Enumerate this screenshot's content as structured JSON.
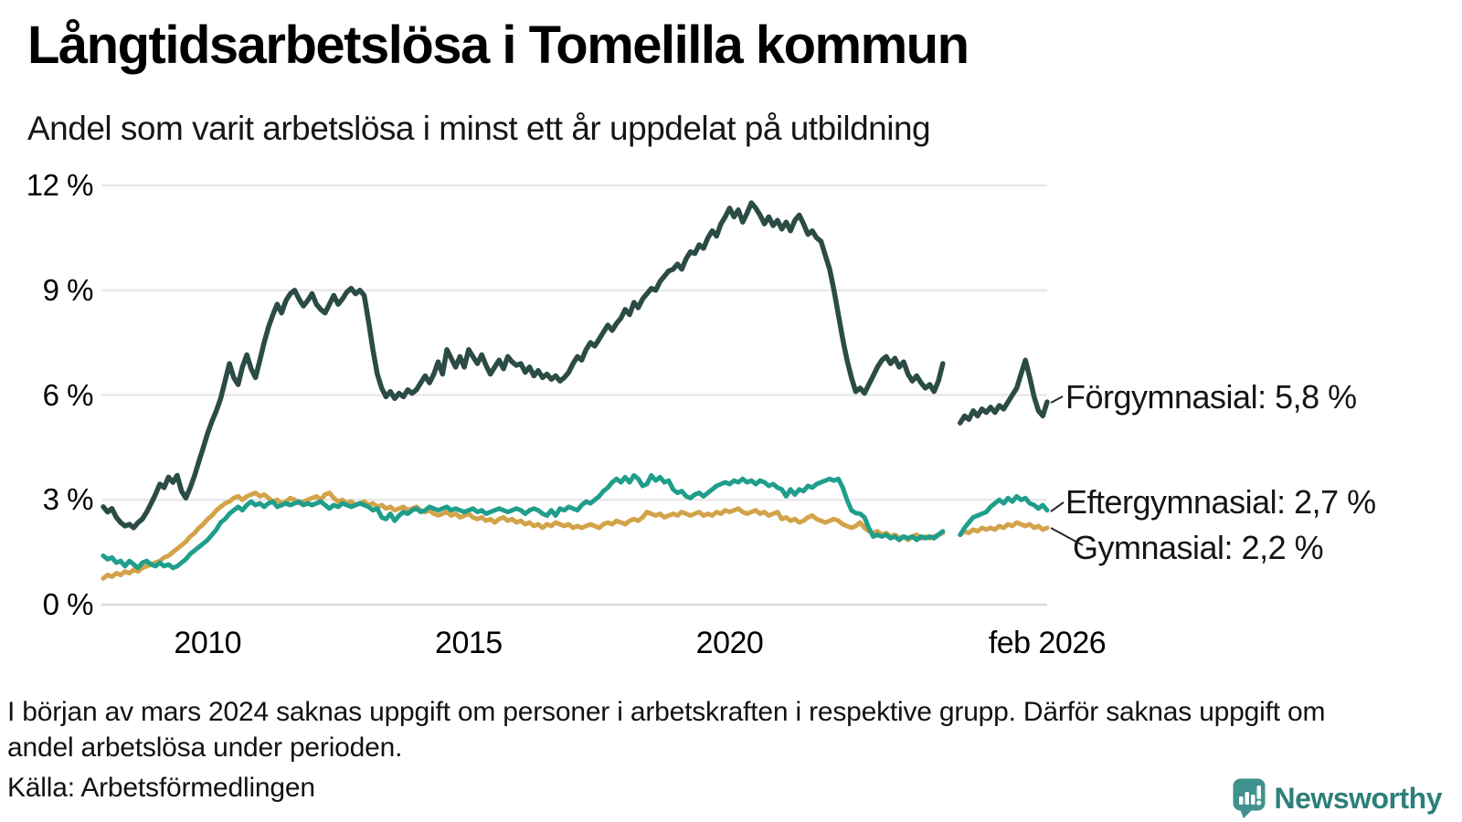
{
  "header": {
    "title": "Långtidsarbetslösa i Tomelilla kommun",
    "subtitle": "Andel som varit arbetslösa i minst ett år uppdelat på utbildning"
  },
  "chart_data": {
    "type": "line",
    "title": "Långtidsarbetslösa i Tomelilla kommun",
    "subtitle": "Andel som varit arbetslösa i minst ett år uppdelat på utbildning",
    "unit": "percent",
    "frequency": "monthly",
    "x_start": "2008-01",
    "x_end": "2026-02",
    "missing_period": "2024-03 to 2024-05",
    "ylim": [
      0,
      12.6
    ],
    "grid": true,
    "yticks": [
      {
        "label": "0 %",
        "value": 0
      },
      {
        "label": "3 %",
        "value": 3
      },
      {
        "label": "6 %",
        "value": 6
      },
      {
        "label": "9 %",
        "value": 9
      },
      {
        "label": "12 %",
        "value": 12
      }
    ],
    "xticks": [
      {
        "label": "2010",
        "date": "2010-01"
      },
      {
        "label": "2015",
        "date": "2015-01"
      },
      {
        "label": "2020",
        "date": "2020-01"
      },
      {
        "label": "feb 2026",
        "date": "2026-02"
      }
    ],
    "series": [
      {
        "name": "Förgymnasial",
        "color": "#2b4b45",
        "end_label": "Förgymnasial: 5,8 %",
        "end_value": 5.8,
        "values": [
          2.8,
          2.65,
          2.75,
          2.5,
          2.35,
          2.25,
          2.3,
          2.2,
          2.35,
          2.45,
          2.65,
          2.9,
          3.15,
          3.45,
          3.35,
          3.65,
          3.5,
          3.7,
          3.25,
          3.05,
          3.35,
          3.7,
          4.1,
          4.5,
          4.9,
          5.25,
          5.55,
          5.9,
          6.4,
          6.9,
          6.5,
          6.3,
          6.8,
          7.15,
          6.75,
          6.5,
          7.0,
          7.5,
          7.95,
          8.3,
          8.6,
          8.35,
          8.7,
          8.9,
          9.0,
          8.75,
          8.55,
          8.7,
          8.9,
          8.6,
          8.45,
          8.35,
          8.6,
          8.85,
          8.6,
          8.75,
          8.95,
          9.05,
          8.9,
          9.0,
          8.85,
          8.1,
          7.3,
          6.6,
          6.2,
          5.95,
          6.1,
          5.9,
          6.05,
          5.95,
          6.15,
          6.05,
          6.15,
          6.35,
          6.55,
          6.35,
          6.6,
          6.95,
          6.6,
          7.3,
          7.05,
          6.8,
          7.1,
          6.8,
          7.3,
          7.1,
          6.9,
          7.15,
          6.85,
          6.6,
          6.8,
          7.0,
          6.75,
          7.1,
          6.95,
          6.85,
          6.9,
          6.65,
          6.8,
          6.55,
          6.7,
          6.5,
          6.6,
          6.45,
          6.55,
          6.4,
          6.5,
          6.65,
          6.9,
          7.1,
          7.0,
          7.3,
          7.5,
          7.4,
          7.6,
          7.8,
          8.0,
          7.85,
          8.05,
          8.2,
          8.45,
          8.3,
          8.65,
          8.5,
          8.75,
          8.9,
          9.05,
          9.0,
          9.25,
          9.4,
          9.55,
          9.6,
          9.75,
          9.6,
          9.9,
          10.1,
          10.05,
          10.3,
          10.2,
          10.5,
          10.7,
          10.55,
          10.9,
          11.1,
          11.35,
          11.1,
          11.3,
          10.95,
          11.2,
          11.5,
          11.35,
          11.15,
          10.9,
          11.1,
          10.85,
          11.0,
          10.75,
          10.95,
          10.7,
          11.0,
          11.15,
          10.9,
          10.6,
          10.7,
          10.5,
          10.4,
          10.0,
          9.6,
          9.0,
          8.3,
          7.6,
          7.0,
          6.5,
          6.1,
          6.2,
          6.05,
          6.3,
          6.55,
          6.8,
          7.0,
          7.1,
          6.9,
          7.05,
          6.8,
          6.95,
          6.6,
          6.4,
          6.55,
          6.35,
          6.2,
          6.3,
          6.1,
          6.4,
          6.9,
          null,
          null,
          null,
          5.2,
          5.4,
          5.3,
          5.55,
          5.4,
          5.6,
          5.5,
          5.65,
          5.5,
          5.7,
          5.6,
          5.8,
          6.0,
          6.2,
          6.6,
          7.0,
          6.5,
          5.95,
          5.55,
          5.4,
          5.8
        ]
      },
      {
        "name": "Eftergymnasial",
        "color": "#1f9e8b",
        "end_label": "Eftergymnasial: 2,7 %",
        "end_value": 2.7,
        "values": [
          1.4,
          1.3,
          1.35,
          1.2,
          1.25,
          1.1,
          1.25,
          1.15,
          1.05,
          1.2,
          1.25,
          1.15,
          1.1,
          1.2,
          1.1,
          1.15,
          1.05,
          1.1,
          1.2,
          1.3,
          1.45,
          1.55,
          1.65,
          1.75,
          1.85,
          2.0,
          2.15,
          2.35,
          2.45,
          2.6,
          2.7,
          2.8,
          2.7,
          2.85,
          2.95,
          2.85,
          2.9,
          2.8,
          2.9,
          2.95,
          2.8,
          2.85,
          2.9,
          2.85,
          2.9,
          2.95,
          2.85,
          2.9,
          2.85,
          2.9,
          2.95,
          2.85,
          2.75,
          2.85,
          2.8,
          2.9,
          2.85,
          2.8,
          2.85,
          2.9,
          2.85,
          2.8,
          2.7,
          2.75,
          2.5,
          2.45,
          2.6,
          2.4,
          2.55,
          2.65,
          2.6,
          2.7,
          2.75,
          2.65,
          2.7,
          2.8,
          2.75,
          2.7,
          2.75,
          2.8,
          2.7,
          2.75,
          2.7,
          2.65,
          2.7,
          2.75,
          2.65,
          2.7,
          2.6,
          2.65,
          2.7,
          2.75,
          2.7,
          2.65,
          2.7,
          2.75,
          2.7,
          2.6,
          2.7,
          2.75,
          2.7,
          2.6,
          2.55,
          2.7,
          2.55,
          2.75,
          2.7,
          2.8,
          2.75,
          2.7,
          2.85,
          2.95,
          2.9,
          3.0,
          3.1,
          3.25,
          3.35,
          3.5,
          3.6,
          3.5,
          3.65,
          3.5,
          3.7,
          3.6,
          3.4,
          3.45,
          3.7,
          3.55,
          3.65,
          3.5,
          3.55,
          3.3,
          3.2,
          3.25,
          3.1,
          3.05,
          3.15,
          3.2,
          3.1,
          3.2,
          3.3,
          3.4,
          3.45,
          3.5,
          3.45,
          3.55,
          3.5,
          3.6,
          3.5,
          3.55,
          3.45,
          3.55,
          3.5,
          3.4,
          3.45,
          3.35,
          3.3,
          3.1,
          3.3,
          3.15,
          3.3,
          3.25,
          3.4,
          3.35,
          3.45,
          3.5,
          3.55,
          3.6,
          3.55,
          3.6,
          3.35,
          3.0,
          2.7,
          2.62,
          2.6,
          2.5,
          2.2,
          1.95,
          2.0,
          1.95,
          2.0,
          1.9,
          1.95,
          1.85,
          1.95,
          1.9,
          1.95,
          1.85,
          1.95,
          1.9,
          1.95,
          1.9,
          2.0,
          2.1,
          null,
          null,
          null,
          2.0,
          2.2,
          2.35,
          2.5,
          2.55,
          2.6,
          2.65,
          2.8,
          2.9,
          3.0,
          2.9,
          3.05,
          2.95,
          3.1,
          3.0,
          3.05,
          2.9,
          2.85,
          2.75,
          2.85,
          2.7
        ]
      },
      {
        "name": "Gymnasial",
        "color": "#d3a349",
        "end_label": "Gymnasial: 2,2 %",
        "end_value": 2.2,
        "values": [
          0.75,
          0.85,
          0.8,
          0.9,
          0.85,
          0.95,
          0.9,
          1.0,
          0.95,
          1.05,
          1.1,
          1.15,
          1.2,
          1.25,
          1.35,
          1.4,
          1.5,
          1.6,
          1.7,
          1.8,
          1.95,
          2.05,
          2.2,
          2.3,
          2.45,
          2.55,
          2.7,
          2.8,
          2.9,
          2.95,
          3.05,
          3.1,
          3.0,
          3.1,
          3.15,
          3.2,
          3.1,
          3.15,
          3.05,
          2.95,
          3.0,
          2.9,
          2.95,
          3.05,
          3.0,
          2.9,
          2.95,
          3.0,
          3.05,
          3.1,
          3.0,
          3.15,
          3.2,
          3.05,
          2.95,
          3.0,
          2.9,
          2.95,
          2.85,
          2.9,
          2.95,
          2.85,
          2.9,
          2.8,
          2.85,
          2.75,
          2.8,
          2.7,
          2.75,
          2.8,
          2.7,
          2.75,
          2.8,
          2.7,
          2.65,
          2.7,
          2.6,
          2.55,
          2.6,
          2.65,
          2.55,
          2.6,
          2.5,
          2.55,
          2.6,
          2.5,
          2.45,
          2.5,
          2.4,
          2.45,
          2.35,
          2.45,
          2.5,
          2.4,
          2.45,
          2.35,
          2.4,
          2.3,
          2.35,
          2.25,
          2.3,
          2.2,
          2.3,
          2.25,
          2.35,
          2.3,
          2.25,
          2.3,
          2.2,
          2.25,
          2.2,
          2.25,
          2.3,
          2.25,
          2.2,
          2.3,
          2.35,
          2.3,
          2.4,
          2.35,
          2.3,
          2.4,
          2.45,
          2.4,
          2.5,
          2.65,
          2.6,
          2.55,
          2.6,
          2.5,
          2.55,
          2.6,
          2.55,
          2.65,
          2.6,
          2.55,
          2.6,
          2.65,
          2.55,
          2.6,
          2.55,
          2.65,
          2.6,
          2.7,
          2.65,
          2.7,
          2.75,
          2.65,
          2.6,
          2.65,
          2.7,
          2.6,
          2.65,
          2.55,
          2.6,
          2.65,
          2.45,
          2.5,
          2.4,
          2.45,
          2.35,
          2.4,
          2.5,
          2.55,
          2.45,
          2.4,
          2.35,
          2.4,
          2.45,
          2.4,
          2.3,
          2.25,
          2.2,
          2.25,
          2.35,
          2.2,
          2.1,
          2.05,
          2.1,
          2.0,
          2.05,
          1.95,
          2.0,
          1.9,
          1.95,
          1.85,
          1.95,
          2.0,
          1.9,
          1.95,
          1.9,
          1.95,
          2.0,
          2.05,
          null,
          null,
          null,
          2.0,
          2.1,
          2.05,
          2.15,
          2.1,
          2.2,
          2.15,
          2.2,
          2.15,
          2.25,
          2.2,
          2.3,
          2.25,
          2.35,
          2.3,
          2.25,
          2.3,
          2.2,
          2.25,
          2.15,
          2.2
        ]
      }
    ]
  },
  "footer": {
    "note": "I början av mars 2024 saknas uppgift om personer i arbetskraften i respektive grupp. Därför saknas uppgift om andel arbetslösa under perioden.",
    "source": "Källa: Arbetsförmedlingen",
    "brand": "Newsworthy"
  },
  "colors": {
    "forgymnasial": "#2b4b45",
    "eftergymnasial": "#1f9e8b",
    "gymnasial": "#d3a349",
    "grid": "#e8e8ec",
    "baseline": "#d9d9de",
    "brand_teal": "#3f928d",
    "brand_text": "#2d7f7b"
  }
}
